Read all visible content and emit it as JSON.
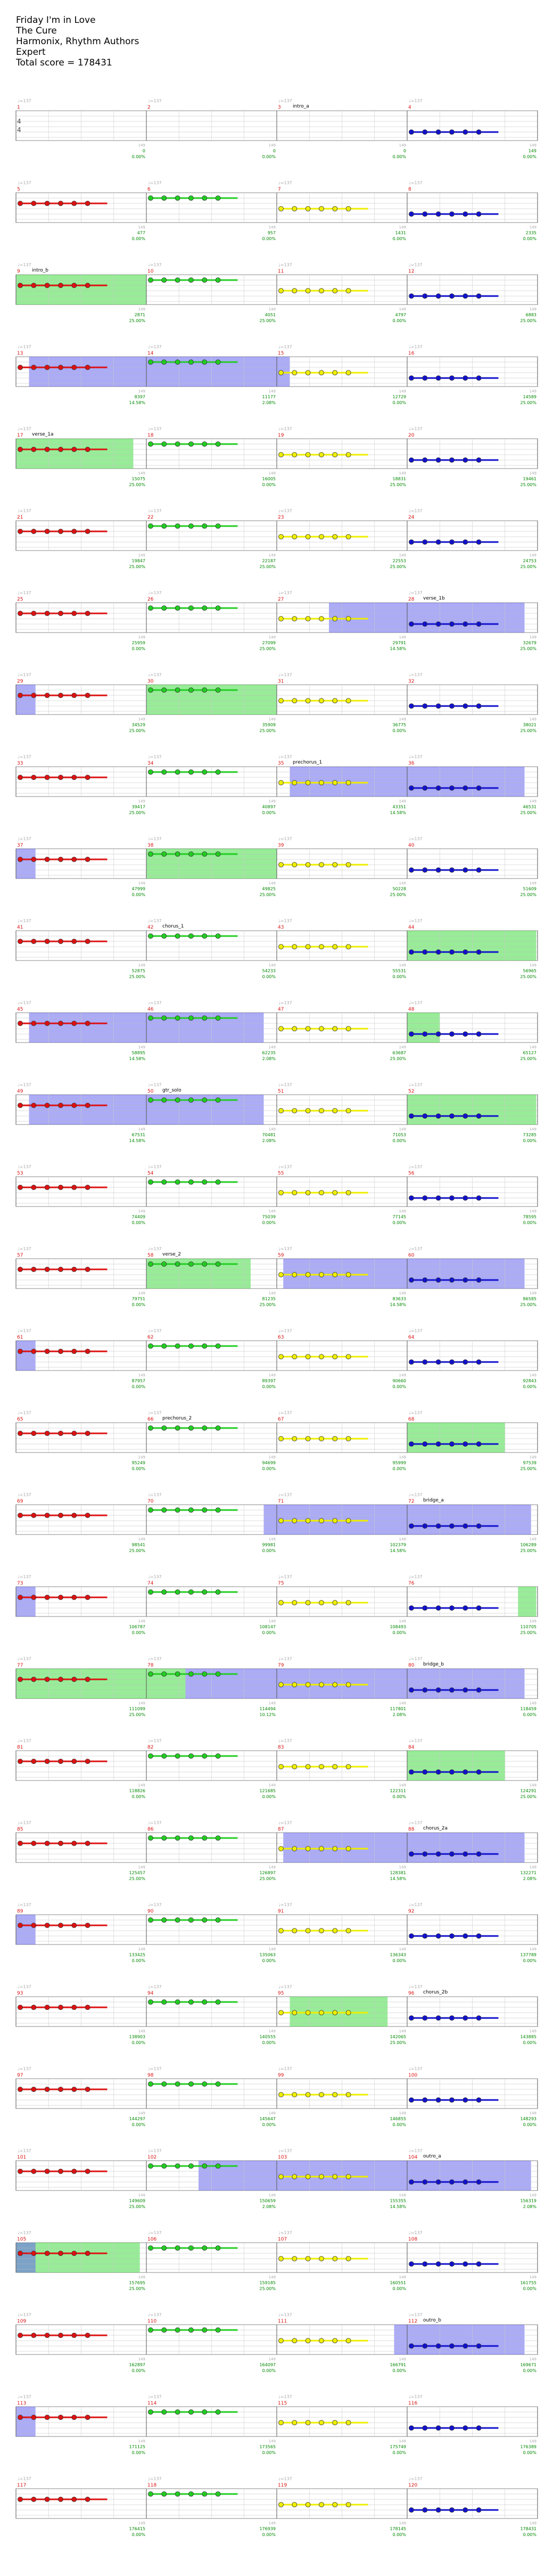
{
  "song": {
    "title": "Friday I'm in Love",
    "artist": "The Cure",
    "instruments": "Harmonix, Rhythm Authors",
    "difficulty": "Expert",
    "total_score_label": "Total score = 178431"
  },
  "colors": {
    "green": "#22cc22",
    "red": "#dd1111",
    "yellow": "#eeee00",
    "blue": "#1111cc",
    "orange": "#ee9900",
    "overdrive_fill": "#6666ee",
    "solo_fill": "#44dd44",
    "score": "#008800",
    "tempo": "#aaaaaa",
    "grid": "#bbbbbb"
  },
  "time_signature": "4/4",
  "tempo_label": "♩=137",
  "beat_tick_label": "149",
  "section_labels": [
    {
      "measure": 3,
      "label": "intro_a"
    },
    {
      "measure": 9,
      "label": "intro_b"
    },
    {
      "measure": 17,
      "label": "verse_1a"
    },
    {
      "measure": 28,
      "label": "verse_1b"
    },
    {
      "measure": 35,
      "label": "prechorus_1"
    },
    {
      "measure": 42,
      "label": "chorus_1"
    },
    {
      "measure": 50,
      "label": "gtr_solo"
    },
    {
      "measure": 58,
      "label": "verse_2"
    },
    {
      "measure": 66,
      "label": "prechorus_2"
    },
    {
      "measure": 72,
      "label": "bridge_a"
    },
    {
      "measure": 80,
      "label": "bridge_b"
    },
    {
      "measure": 88,
      "label": "chorus_2a"
    },
    {
      "measure": 96,
      "label": "chorus_2b"
    },
    {
      "measure": 104,
      "label": "outro_a"
    },
    {
      "measure": 112,
      "label": "outro_b"
    }
  ],
  "measures": [
    {
      "n": 1,
      "s": 0,
      "p": "0.00%"
    },
    {
      "n": 2,
      "s": 0,
      "p": "0.00%"
    },
    {
      "n": 3,
      "s": 0,
      "p": "0.00%"
    },
    {
      "n": 4,
      "s": 149,
      "p": "0.00%"
    },
    {
      "n": 5,
      "s": 477,
      "p": "0.00%"
    },
    {
      "n": 6,
      "s": 957,
      "p": "0.00%"
    },
    {
      "n": 7,
      "s": 1431,
      "p": "0.00%"
    },
    {
      "n": 8,
      "s": 2335,
      "p": "0.00%"
    },
    {
      "n": 9,
      "s": 2871,
      "p": "25.00%"
    },
    {
      "n": 10,
      "s": 4051,
      "p": "25.00%"
    },
    {
      "n": 11,
      "s": 4797,
      "p": "0.00%"
    },
    {
      "n": 12,
      "s": 6883,
      "p": "25.00%"
    },
    {
      "n": 13,
      "s": 8397,
      "p": "14.58%"
    },
    {
      "n": 14,
      "s": 11177,
      "p": "2.08%"
    },
    {
      "n": 15,
      "s": 12729,
      "p": "0.00%"
    },
    {
      "n": 16,
      "s": 14589,
      "p": "25.00%"
    },
    {
      "n": 17,
      "s": 15075,
      "p": "25.00%"
    },
    {
      "n": 18,
      "s": 16005,
      "p": "0.00%"
    },
    {
      "n": 19,
      "s": 18831,
      "p": "25.00%"
    },
    {
      "n": 20,
      "s": 19461,
      "p": "25.00%"
    },
    {
      "n": 21,
      "s": 19847,
      "p": "25.00%"
    },
    {
      "n": 22,
      "s": 22187,
      "p": "25.00%"
    },
    {
      "n": 23,
      "s": 22553,
      "p": "25.00%"
    },
    {
      "n": 24,
      "s": 24753,
      "p": "25.00%"
    },
    {
      "n": 25,
      "s": 25959,
      "p": "0.00%"
    },
    {
      "n": 26,
      "s": 27099,
      "p": "25.00%"
    },
    {
      "n": 27,
      "s": 29791,
      "p": "14.58%"
    },
    {
      "n": 28,
      "s": 32679,
      "p": "25.00%"
    },
    {
      "n": 29,
      "s": 34529,
      "p": "25.00%"
    },
    {
      "n": 30,
      "s": 35909,
      "p": "25.00%"
    },
    {
      "n": 31,
      "s": 36775,
      "p": "0.00%"
    },
    {
      "n": 32,
      "s": 38021,
      "p": "25.00%"
    },
    {
      "n": 33,
      "s": 39417,
      "p": "25.00%"
    },
    {
      "n": 34,
      "s": 40897,
      "p": "0.00%"
    },
    {
      "n": 35,
      "s": 43351,
      "p": "14.58%"
    },
    {
      "n": 36,
      "s": 46531,
      "p": "25.00%"
    },
    {
      "n": 37,
      "s": 47999,
      "p": "0.00%"
    },
    {
      "n": 38,
      "s": 49825,
      "p": "25.00%"
    },
    {
      "n": 39,
      "s": 50228,
      "p": "25.00%"
    },
    {
      "n": 40,
      "s": 51609,
      "p": "25.00%"
    },
    {
      "n": 41,
      "s": 52875,
      "p": "25.00%"
    },
    {
      "n": 42,
      "s": 54233,
      "p": "0.00%"
    },
    {
      "n": 43,
      "s": 55531,
      "p": "0.00%"
    },
    {
      "n": 44,
      "s": 56965,
      "p": "25.00%"
    },
    {
      "n": 45,
      "s": 58895,
      "p": "14.58%"
    },
    {
      "n": 46,
      "s": 62235,
      "p": "2.08%"
    },
    {
      "n": 47,
      "s": 63687,
      "p": "25.00%"
    },
    {
      "n": 48,
      "s": 65127,
      "p": "25.00%"
    },
    {
      "n": 49,
      "s": 67531,
      "p": "14.58%"
    },
    {
      "n": 50,
      "s": 70481,
      "p": "2.08%"
    },
    {
      "n": 51,
      "s": 71053,
      "p": "0.00%"
    },
    {
      "n": 52,
      "s": 73285,
      "p": "0.00%"
    },
    {
      "n": 53,
      "s": 74409,
      "p": "0.00%"
    },
    {
      "n": 54,
      "s": 75039,
      "p": "0.00%"
    },
    {
      "n": 55,
      "s": 77145,
      "p": "0.00%"
    },
    {
      "n": 56,
      "s": 78595,
      "p": "0.00%"
    },
    {
      "n": 57,
      "s": 79751,
      "p": "0.00%"
    },
    {
      "n": 58,
      "s": 81235,
      "p": "25.00%"
    },
    {
      "n": 59,
      "s": 83633,
      "p": "14.58%"
    },
    {
      "n": 60,
      "s": 86585,
      "p": "25.00%"
    },
    {
      "n": 61,
      "s": 87957,
      "p": "0.00%"
    },
    {
      "n": 62,
      "s": 89397,
      "p": "0.00%"
    },
    {
      "n": 63,
      "s": 90660,
      "p": "0.00%"
    },
    {
      "n": 64,
      "s": 92843,
      "p": "0.00%"
    },
    {
      "n": 65,
      "s": 95249,
      "p": "0.00%"
    },
    {
      "n": 66,
      "s": 94699,
      "p": "0.00%"
    },
    {
      "n": 67,
      "s": 95999,
      "p": "0.00%"
    },
    {
      "n": 68,
      "s": 97539,
      "p": "25.00%"
    },
    {
      "n": 69,
      "s": 98541,
      "p": "25.00%"
    },
    {
      "n": 70,
      "s": 99981,
      "p": "0.00%"
    },
    {
      "n": 71,
      "s": 102379,
      "p": "14.58%"
    },
    {
      "n": 72,
      "s": 106289,
      "p": "25.00%"
    },
    {
      "n": 73,
      "s": 106787,
      "p": "0.00%"
    },
    {
      "n": 74,
      "s": 108147,
      "p": "0.00%"
    },
    {
      "n": 75,
      "s": 108493,
      "p": "0.00%"
    },
    {
      "n": 76,
      "s": 110705,
      "p": "25.00%"
    },
    {
      "n": 77,
      "s": 111099,
      "p": "25.00%"
    },
    {
      "n": 78,
      "s": 114494,
      "p": "10.12%"
    },
    {
      "n": 79,
      "s": 117801,
      "p": "2.08%"
    },
    {
      "n": 80,
      "s": 118459,
      "p": "0.00%"
    },
    {
      "n": 81,
      "s": 118826,
      "p": "0.00%"
    },
    {
      "n": 82,
      "s": 121685,
      "p": "0.00%"
    },
    {
      "n": 83,
      "s": 122311,
      "p": "0.00%"
    },
    {
      "n": 84,
      "s": 124291,
      "p": "25.00%"
    },
    {
      "n": 85,
      "s": 125457,
      "p": "25.00%"
    },
    {
      "n": 86,
      "s": 126897,
      "p": "25.00%"
    },
    {
      "n": 87,
      "s": 128381,
      "p": "14.58%"
    },
    {
      "n": 88,
      "s": 132271,
      "p": "2.08%"
    },
    {
      "n": 89,
      "s": 133425,
      "p": "0.00%"
    },
    {
      "n": 90,
      "s": 135063,
      "p": "0.00%"
    },
    {
      "n": 91,
      "s": 136343,
      "p": "0.00%"
    },
    {
      "n": 92,
      "s": 137789,
      "p": "0.00%"
    },
    {
      "n": 93,
      "s": 138903,
      "p": "0.00%"
    },
    {
      "n": 94,
      "s": 140555,
      "p": "0.00%"
    },
    {
      "n": 95,
      "s": 142065,
      "p": "25.00%"
    },
    {
      "n": 96,
      "s": 143885,
      "p": "0.00%"
    },
    {
      "n": 97,
      "s": 144297,
      "p": "0.00%"
    },
    {
      "n": 98,
      "s": 145647,
      "p": "0.00%"
    },
    {
      "n": 99,
      "s": 146855,
      "p": "0.00%"
    },
    {
      "n": 100,
      "s": 148293,
      "p": "0.00%"
    },
    {
      "n": 101,
      "s": 149609,
      "p": "25.00%"
    },
    {
      "n": 102,
      "s": 150659,
      "p": "2.08%"
    },
    {
      "n": 103,
      "s": 155355,
      "p": "14.58%"
    },
    {
      "n": 104,
      "s": 156319,
      "p": "2.08%"
    },
    {
      "n": 105,
      "s": 157695,
      "p": "25.00%"
    },
    {
      "n": 106,
      "s": 159185,
      "p": "25.00%"
    },
    {
      "n": 107,
      "s": 160551,
      "p": "0.00%"
    },
    {
      "n": 108,
      "s": 161755,
      "p": "0.00%"
    },
    {
      "n": 109,
      "s": 162897,
      "p": "0.00%"
    },
    {
      "n": 110,
      "s": 164097,
      "p": "0.00%"
    },
    {
      "n": 111,
      "s": 166791,
      "p": "0.00%"
    },
    {
      "n": 112,
      "s": 169671,
      "p": "0.00%"
    },
    {
      "n": 113,
      "s": 171125,
      "p": "0.00%"
    },
    {
      "n": 114,
      "s": 173565,
      "p": "0.00%"
    },
    {
      "n": 115,
      "s": 175749,
      "p": "0.00%"
    },
    {
      "n": 116,
      "s": 176389,
      "p": "0.00%"
    },
    {
      "n": 117,
      "s": 176415,
      "p": "0.00%"
    },
    {
      "n": 118,
      "s": 176939,
      "p": "0.00%"
    },
    {
      "n": 119,
      "s": 178145,
      "p": "0.00%"
    },
    {
      "n": 120,
      "s": 178431,
      "p": "0.00%"
    }
  ],
  "overdrive_phrases": [
    [
      13.1,
      15.1
    ],
    [
      27.4,
      28.9
    ],
    [
      29.0,
      29.15
    ],
    [
      35.1,
      36.9
    ],
    [
      37.0,
      37.15
    ],
    [
      45.1,
      46.9
    ],
    [
      49.1,
      50.9
    ],
    [
      59.05,
      60.9
    ],
    [
      61.0,
      61.15
    ],
    [
      70.9,
      72.95
    ],
    [
      73.0,
      73.15
    ],
    [
      78.3,
      80.9
    ],
    [
      87.05,
      88.9
    ],
    [
      89.0,
      89.15
    ],
    [
      102.4,
      104.95
    ],
    [
      105.0,
      105.15
    ],
    [
      111.9,
      112.9
    ],
    [
      113.0,
      113.15
    ]
  ],
  "solo_sections": [
    [
      9.0,
      10.0
    ],
    [
      17.0,
      17.9
    ],
    [
      30.0,
      31.0
    ],
    [
      38.0,
      39.0
    ],
    [
      44.0,
      44.99
    ],
    [
      48.0,
      48.25
    ],
    [
      52.0,
      52.99
    ],
    [
      58.0,
      58.8
    ],
    [
      68.0,
      68.75
    ],
    [
      76.85,
      76.99
    ],
    [
      77.0,
      78.3
    ],
    [
      84.0,
      84.75
    ],
    [
      95.1,
      95.85
    ],
    [
      105.0,
      105.95
    ]
  ],
  "chords": [
    "R",
    "G",
    "Y",
    "B",
    "R",
    "G",
    "Y",
    "B"
  ]
}
